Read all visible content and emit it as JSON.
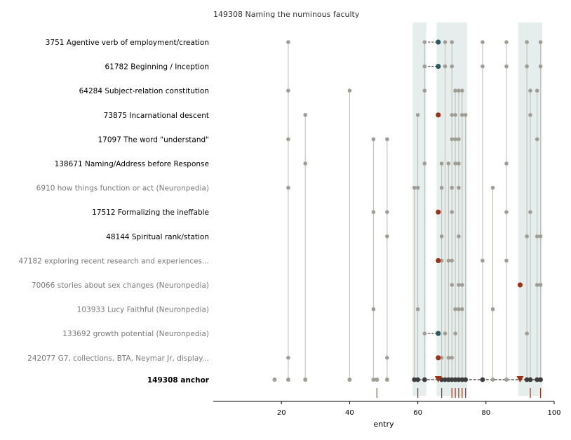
{
  "chart_data": {
    "type": "scatter",
    "title": "149308  Naming the numinous faculty",
    "xlabel": "entry",
    "xlim": [
      0,
      100
    ],
    "x_ticks": [
      20,
      40,
      60,
      80,
      100
    ],
    "shaded_ranges": [
      [
        58.5,
        62.5
      ],
      [
        65.5,
        74.5
      ],
      [
        89.5,
        96.5
      ]
    ],
    "colors": {
      "gray_point": "#a09d94",
      "stem": "#bdbab3",
      "dark_point": "#3d3d3d",
      "teal_point": "#2a5a5e",
      "red_point": "#9a3419",
      "shade": "#e6eeed",
      "label_dim": "#7a7a7a",
      "label": "#000000",
      "anchor_tick": "#7a6a2a",
      "anchor_tick_red": "#9a3419"
    },
    "rows": [
      {
        "label": "3751  Agentive verb of employment/creation",
        "dim": false,
        "points": [
          22,
          62,
          68,
          70,
          79,
          86,
          92,
          96
        ],
        "teal": [
          66
        ],
        "red": [],
        "dashed_from": 62
      },
      {
        "label": "61782  Beginning / Inception",
        "dim": false,
        "points": [
          62,
          68,
          70,
          79,
          86,
          92,
          96
        ],
        "teal": [
          66
        ],
        "red": [],
        "dashed_from": 62
      },
      {
        "label": "64284  Subject-relation constitution",
        "dim": false,
        "points": [
          22,
          40,
          62,
          71,
          72,
          73,
          93,
          95
        ],
        "teal": [],
        "red": [],
        "dashed_from": null
      },
      {
        "label": "73875  Incarnational descent",
        "dim": false,
        "points": [
          27,
          60,
          70,
          71,
          73,
          74,
          93
        ],
        "teal": [],
        "red": [
          66
        ],
        "dashed_from": null
      },
      {
        "label": "17097  The word \"understand\"",
        "dim": false,
        "points": [
          22,
          47,
          51,
          70,
          71,
          72,
          95
        ],
        "teal": [],
        "red": [],
        "dashed_from": null
      },
      {
        "label": "138671  Naming/Address before Response",
        "dim": false,
        "points": [
          27,
          62,
          67,
          69,
          71,
          72,
          86
        ],
        "teal": [],
        "red": [],
        "dashed_from": null
      },
      {
        "label": "6910  how things function or act (Neuronpedia)",
        "dim": true,
        "points": [
          22,
          59,
          60,
          67,
          70,
          72,
          82
        ],
        "teal": [],
        "red": [],
        "dashed_from": null
      },
      {
        "label": "17512  Formalizing the ineffable",
        "dim": false,
        "points": [
          47,
          51,
          70,
          86,
          93
        ],
        "teal": [],
        "red": [
          66
        ],
        "dashed_from": null
      },
      {
        "label": "48144  Spiritual rank/station",
        "dim": false,
        "points": [
          51,
          67,
          72,
          92,
          95,
          96
        ],
        "teal": [],
        "red": [],
        "dashed_from": null
      },
      {
        "label": "47182  exploring recent research and experiences...",
        "dim": true,
        "points": [
          67,
          69,
          70,
          79,
          86
        ],
        "teal": [],
        "red": [
          66
        ],
        "dashed_from": null
      },
      {
        "label": "70066  stories about sex changes (Neuronpedia)",
        "dim": true,
        "points": [
          70,
          72,
          73,
          95,
          96
        ],
        "teal": [],
        "red": [
          90
        ],
        "dashed_from": null
      },
      {
        "label": "103933  Lucy Faithful (Neuronpedia)",
        "dim": true,
        "points": [
          47,
          60,
          71,
          72,
          73,
          82
        ],
        "teal": [],
        "red": [],
        "dashed_from": null
      },
      {
        "label": "133692  growth potential (Neuronpedia)",
        "dim": true,
        "points": [
          62,
          68,
          71,
          92
        ],
        "teal": [
          66
        ],
        "red": [],
        "dashed_from": 62
      },
      {
        "label": "242077  G7, collections, BTA, Neymar Jr, display...",
        "dim": true,
        "points": [
          22,
          51,
          67,
          69,
          70
        ],
        "teal": [],
        "red": [
          66
        ],
        "dashed_from": null
      }
    ],
    "anchor": {
      "label": "149308  anchor",
      "gray_points": [
        18,
        22,
        27,
        40,
        47,
        48,
        51,
        82,
        86
      ],
      "dark_points": [
        59,
        60,
        62,
        67,
        68,
        69,
        70,
        71,
        72,
        73,
        74,
        79,
        92,
        93,
        95,
        96
      ],
      "red_triangles": [
        66,
        90
      ],
      "dashed_from": 59,
      "dashed_to": 96
    },
    "entry_ticks": {
      "olive": [
        48
      ],
      "red": [
        60,
        67,
        70,
        71,
        72,
        73,
        74,
        93,
        96
      ]
    }
  }
}
